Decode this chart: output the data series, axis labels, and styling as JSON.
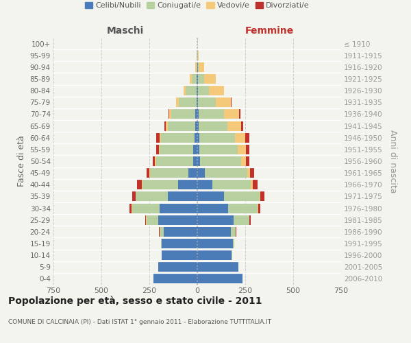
{
  "age_groups": [
    "0-4",
    "5-9",
    "10-14",
    "15-19",
    "20-24",
    "25-29",
    "30-34",
    "35-39",
    "40-44",
    "45-49",
    "50-54",
    "55-59",
    "60-64",
    "65-69",
    "70-74",
    "75-79",
    "80-84",
    "85-89",
    "90-94",
    "95-99",
    "100+"
  ],
  "birth_years": [
    "2006-2010",
    "2001-2005",
    "1996-2000",
    "1991-1995",
    "1986-1990",
    "1981-1985",
    "1976-1980",
    "1971-1975",
    "1966-1970",
    "1961-1965",
    "1956-1960",
    "1951-1955",
    "1946-1950",
    "1941-1945",
    "1936-1940",
    "1931-1935",
    "1926-1930",
    "1921-1925",
    "1916-1920",
    "1911-1915",
    "≤ 1910"
  ],
  "male_celibi": [
    230,
    205,
    185,
    185,
    175,
    205,
    195,
    155,
    100,
    45,
    20,
    20,
    15,
    10,
    10,
    5,
    5,
    5,
    0,
    0,
    0
  ],
  "male_coniugati": [
    0,
    0,
    0,
    5,
    20,
    60,
    145,
    165,
    185,
    200,
    195,
    175,
    175,
    145,
    125,
    90,
    55,
    25,
    5,
    2,
    0
  ],
  "male_vedovi": [
    0,
    0,
    0,
    0,
    2,
    2,
    3,
    3,
    5,
    5,
    5,
    5,
    8,
    10,
    10,
    15,
    12,
    10,
    5,
    0,
    0
  ],
  "male_divorziati": [
    0,
    0,
    0,
    0,
    2,
    5,
    10,
    15,
    25,
    15,
    13,
    15,
    18,
    8,
    5,
    0,
    0,
    0,
    0,
    0,
    0
  ],
  "female_nubili": [
    235,
    215,
    180,
    185,
    175,
    190,
    160,
    140,
    80,
    40,
    15,
    12,
    10,
    8,
    8,
    5,
    5,
    5,
    2,
    0,
    0
  ],
  "female_coniugate": [
    0,
    0,
    2,
    8,
    25,
    80,
    155,
    185,
    200,
    220,
    215,
    200,
    185,
    150,
    130,
    90,
    55,
    30,
    5,
    2,
    0
  ],
  "female_vedove": [
    0,
    0,
    0,
    0,
    1,
    2,
    3,
    5,
    8,
    15,
    25,
    40,
    55,
    70,
    80,
    80,
    78,
    60,
    28,
    5,
    0
  ],
  "female_divorziate": [
    0,
    0,
    0,
    0,
    2,
    5,
    10,
    20,
    25,
    20,
    18,
    18,
    20,
    10,
    8,
    5,
    0,
    0,
    0,
    0,
    0
  ],
  "color_celibi": "#4c7cb8",
  "color_coniugati": "#b8cfa0",
  "color_vedovi": "#f5c97a",
  "color_divorziati": "#c0312b",
  "xlim": 750,
  "title": "Popolazione per età, sesso e stato civile - 2011",
  "subtitle": "COMUNE DI CALCINAIA (PI) - Dati ISTAT 1° gennaio 2011 - Elaborazione TUTTITALIA.IT",
  "ylabel_left": "Fasce di età",
  "ylabel_right": "Anni di nascita",
  "label_maschi": "Maschi",
  "label_femmine": "Femmine",
  "bg_color": "#f4f4ef",
  "grid_color": "#cccccc",
  "legend_labels": [
    "Celibi/Nubili",
    "Coniugati/e",
    "Vedovi/e",
    "Divorziati/e"
  ]
}
